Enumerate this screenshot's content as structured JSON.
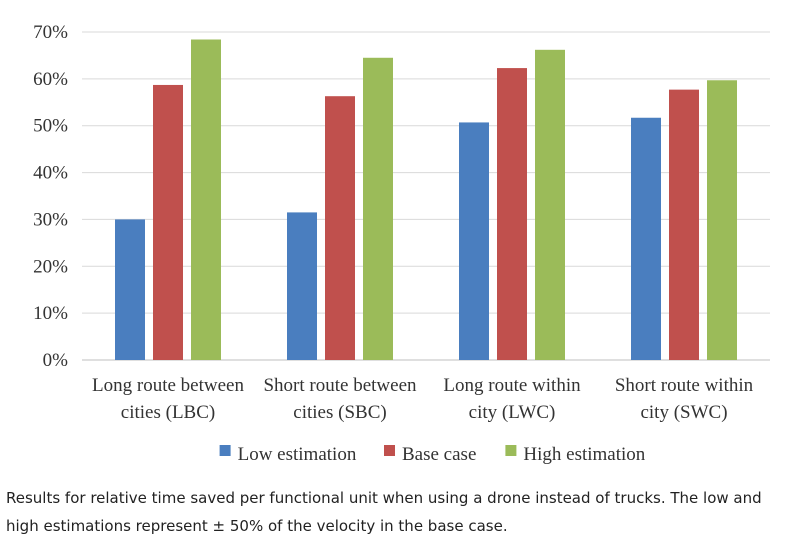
{
  "chart_data": {
    "type": "bar",
    "categories": [
      [
        "Long route between",
        "cities (LBC)"
      ],
      [
        "Short route between",
        "cities (SBC)"
      ],
      [
        "Long route within",
        "city (LWC)"
      ],
      [
        "Short route within",
        "city (SWC)"
      ]
    ],
    "series": [
      {
        "name": "Low estimation",
        "color": "#4a7ebf",
        "values": [
          30,
          31.5,
          50.7,
          51.7
        ]
      },
      {
        "name": "Base case",
        "color": "#c0504d",
        "values": [
          58.7,
          56.3,
          62.3,
          57.7
        ]
      },
      {
        "name": "High estimation",
        "color": "#9bbb59",
        "values": [
          68.4,
          64.5,
          66.2,
          59.7
        ]
      }
    ],
    "ylim": [
      0,
      70
    ],
    "yticks": [
      0,
      10,
      20,
      30,
      40,
      50,
      60,
      70
    ],
    "ytick_labels": [
      "0%",
      "10%",
      "20%",
      "30%",
      "40%",
      "50%",
      "60%",
      "70%"
    ],
    "grid": true,
    "legend": "bottom"
  },
  "caption": {
    "text": "Results for relative time saved per functional unit when using a drone instead of trucks. The low and high estimations represent ± 50% of the velocity in the base case."
  }
}
